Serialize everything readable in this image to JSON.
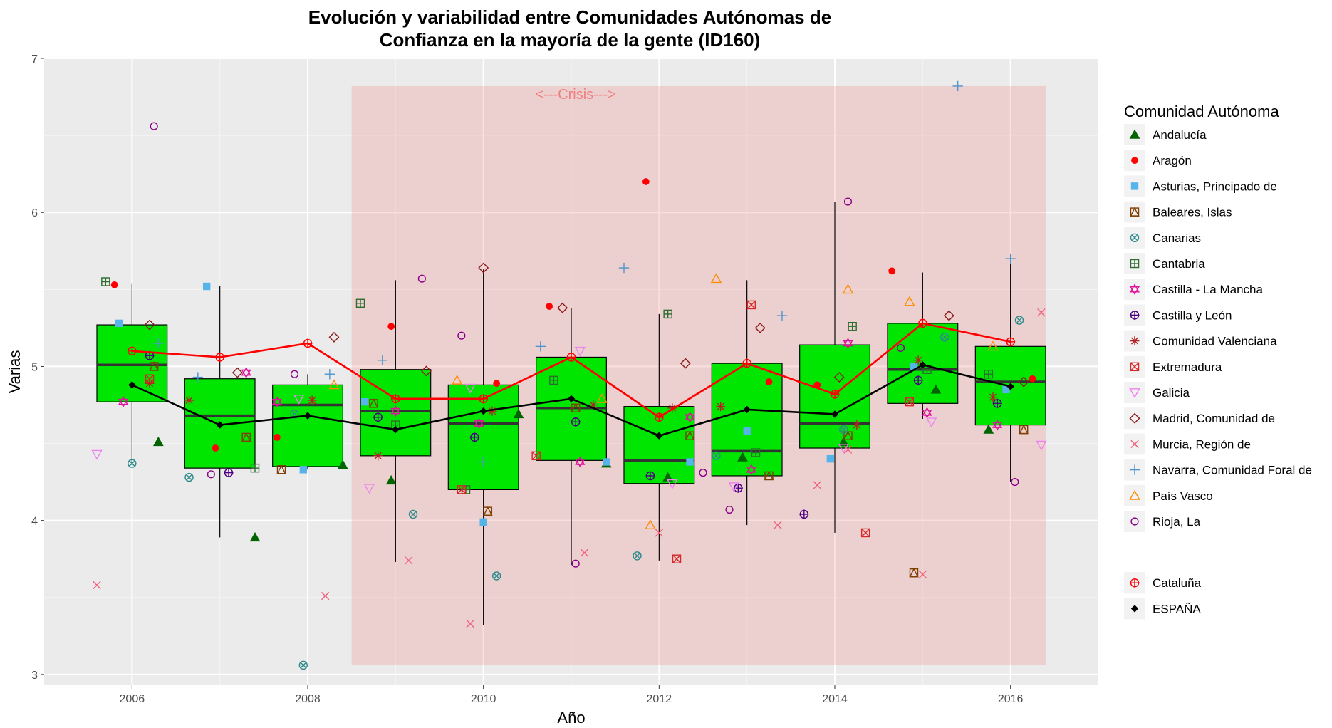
{
  "chart_data": {
    "type": "box",
    "title_lines": [
      "Evolución y variabilidad entre Comunidades Autónomas de",
      "Confianza en la mayoría de la gente (ID160)"
    ],
    "xlabel": "Año",
    "ylabel": "Varias",
    "xlim": [
      2005.0,
      2017.0
    ],
    "ylim": [
      2.93,
      7.0
    ],
    "x_ticks": [
      2006,
      2008,
      2010,
      2012,
      2014,
      2016
    ],
    "y_ticks": [
      3,
      4,
      5,
      6,
      7
    ],
    "grid": true,
    "crisis_band": {
      "x_range": [
        2008.5,
        2016.4
      ],
      "y_range": [
        3.06,
        6.82
      ],
      "label": "<---Crisis--->",
      "color": "#f08080"
    },
    "box_fill": "#00e600",
    "boxes": [
      {
        "year": 2006,
        "lower": 4.36,
        "q1": 4.77,
        "median": 5.01,
        "q3": 5.27,
        "upper": 5.54
      },
      {
        "year": 2007,
        "lower": 3.89,
        "q1": 4.34,
        "median": 4.68,
        "q3": 4.92,
        "upper": 5.52
      },
      {
        "year": 2008,
        "lower": 4.33,
        "q1": 4.35,
        "median": 4.75,
        "q3": 4.88,
        "upper": 4.95
      },
      {
        "year": 2009,
        "lower": 3.73,
        "q1": 4.42,
        "median": 4.71,
        "q3": 4.98,
        "upper": 5.56
      },
      {
        "year": 2010,
        "lower": 3.32,
        "q1": 4.2,
        "median": 4.63,
        "q3": 4.88,
        "upper": 5.63
      },
      {
        "year": 2011,
        "lower": 3.71,
        "q1": 4.39,
        "median": 4.73,
        "q3": 5.06,
        "upper": 5.38
      },
      {
        "year": 2012,
        "lower": 3.74,
        "q1": 4.24,
        "median": 4.39,
        "q3": 4.74,
        "upper": 5.34
      },
      {
        "year": 2013,
        "lower": 3.97,
        "q1": 4.29,
        "median": 4.45,
        "q3": 5.02,
        "upper": 5.56
      },
      {
        "year": 2014,
        "lower": 3.92,
        "q1": 4.47,
        "median": 4.63,
        "q3": 5.14,
        "upper": 6.07
      },
      {
        "year": 2015,
        "lower": 4.66,
        "q1": 4.76,
        "median": 4.98,
        "q3": 5.28,
        "upper": 5.61
      },
      {
        "year": 2016,
        "lower": 4.25,
        "q1": 4.62,
        "median": 4.9,
        "q3": 5.13,
        "upper": 5.69
      }
    ],
    "series": [
      {
        "name": "Cataluña",
        "color": "#ff0000",
        "marker": "circle-plus",
        "x": [
          2006,
          2007,
          2008,
          2009,
          2010,
          2011,
          2012,
          2013,
          2014,
          2015,
          2016
        ],
        "y": [
          5.1,
          5.06,
          5.15,
          4.79,
          4.79,
          5.06,
          4.67,
          5.02,
          4.82,
          5.28,
          5.16
        ]
      },
      {
        "name": "ESPAÑA",
        "color": "#000000",
        "marker": "diamond-filled",
        "x": [
          2006,
          2007,
          2008,
          2009,
          2010,
          2011,
          2012,
          2013,
          2014,
          2015,
          2016
        ],
        "y": [
          4.88,
          4.62,
          4.68,
          4.59,
          4.71,
          4.79,
          4.55,
          4.72,
          4.69,
          5.01,
          4.87
        ]
      }
    ],
    "regions": [
      {
        "name": "Andalucía",
        "color": "#006400",
        "marker": "triangle-filled",
        "points": [
          [
            2006.3,
            4.51
          ],
          [
            2007.4,
            3.89
          ],
          [
            2008.4,
            4.36
          ],
          [
            2008.95,
            4.26
          ],
          [
            2010.4,
            4.69
          ],
          [
            2011.4,
            4.37
          ],
          [
            2012.1,
            4.28
          ],
          [
            2012.95,
            4.41
          ],
          [
            2014.1,
            4.51
          ],
          [
            2015.15,
            4.85
          ],
          [
            2015.75,
            4.59
          ]
        ]
      },
      {
        "name": "Aragón",
        "color": "#ff0000",
        "marker": "circle-filled",
        "points": [
          [
            2005.8,
            5.53
          ],
          [
            2006.95,
            4.47
          ],
          [
            2007.65,
            4.54
          ],
          [
            2008.95,
            5.26
          ],
          [
            2010.15,
            4.89
          ],
          [
            2010.75,
            5.39
          ],
          [
            2011.85,
            6.2
          ],
          [
            2013.25,
            4.9
          ],
          [
            2013.8,
            4.88
          ],
          [
            2014.65,
            5.62
          ],
          [
            2016.25,
            4.92
          ]
        ]
      },
      {
        "name": "Asturias, Principado de",
        "color": "#56b4e9",
        "marker": "square-filled",
        "points": [
          [
            2005.85,
            5.28
          ],
          [
            2006.85,
            5.52
          ],
          [
            2007.95,
            4.33
          ],
          [
            2008.65,
            4.77
          ],
          [
            2010.0,
            3.99
          ],
          [
            2011.4,
            4.38
          ],
          [
            2012.35,
            4.38
          ],
          [
            2013.0,
            4.58
          ],
          [
            2013.95,
            4.4
          ],
          [
            2014.9,
            5.0
          ],
          [
            2015.95,
            4.85
          ]
        ]
      },
      {
        "name": "Baleares, Islas",
        "color": "#7f3f00",
        "marker": "square-triangle",
        "points": [
          [
            2006.25,
            5.0
          ],
          [
            2007.3,
            4.54
          ],
          [
            2007.7,
            4.33
          ],
          [
            2008.75,
            4.76
          ],
          [
            2010.05,
            4.06
          ],
          [
            2011.05,
            4.73
          ],
          [
            2012.35,
            4.55
          ],
          [
            2013.25,
            4.29
          ],
          [
            2014.15,
            4.55
          ],
          [
            2014.9,
            3.66
          ],
          [
            2016.15,
            4.59
          ]
        ]
      },
      {
        "name": "Canarias",
        "color": "#2e8b8b",
        "marker": "circle-x",
        "points": [
          [
            2006.0,
            4.37
          ],
          [
            2006.65,
            4.28
          ],
          [
            2007.85,
            4.69
          ],
          [
            2007.95,
            3.06
          ],
          [
            2009.2,
            4.04
          ],
          [
            2010.15,
            3.64
          ],
          [
            2011.75,
            3.77
          ],
          [
            2012.65,
            4.42
          ],
          [
            2014.1,
            4.59
          ],
          [
            2015.25,
            5.19
          ],
          [
            2016.1,
            5.3
          ]
        ]
      },
      {
        "name": "Cantabria",
        "color": "#2e6b2e",
        "marker": "square-plus",
        "points": [
          [
            2005.7,
            5.55
          ],
          [
            2007.4,
            4.34
          ],
          [
            2008.6,
            5.41
          ],
          [
            2009.0,
            4.62
          ],
          [
            2009.8,
            4.2
          ],
          [
            2010.8,
            4.91
          ],
          [
            2012.1,
            5.34
          ],
          [
            2013.1,
            4.44
          ],
          [
            2014.2,
            5.26
          ],
          [
            2015.05,
            4.98
          ],
          [
            2015.75,
            4.95
          ]
        ]
      },
      {
        "name": "Castilla - La Mancha",
        "color": "#e0119d",
        "marker": "star-of-david",
        "points": [
          [
            2005.9,
            4.77
          ],
          [
            2007.3,
            4.96
          ],
          [
            2007.65,
            4.77
          ],
          [
            2009.0,
            4.71
          ],
          [
            2009.95,
            4.63
          ],
          [
            2011.1,
            4.38
          ],
          [
            2012.35,
            4.67
          ],
          [
            2013.05,
            4.33
          ],
          [
            2014.15,
            5.15
          ],
          [
            2015.05,
            4.7
          ],
          [
            2015.85,
            4.62
          ]
        ]
      },
      {
        "name": "Castilla y León",
        "color": "#4b0082",
        "marker": "circle-plus",
        "points": [
          [
            2006.2,
            5.07
          ],
          [
            2007.1,
            4.31
          ],
          [
            2008.8,
            4.67
          ],
          [
            2009.9,
            4.54
          ],
          [
            2011.05,
            4.64
          ],
          [
            2011.9,
            4.29
          ],
          [
            2012.9,
            4.21
          ],
          [
            2013.65,
            4.04
          ],
          [
            2014.95,
            4.91
          ],
          [
            2015.85,
            4.76
          ]
        ]
      },
      {
        "name": "Comunidad Valenciana",
        "color": "#b22222",
        "marker": "asterisk",
        "points": [
          [
            2006.2,
            4.89
          ],
          [
            2006.65,
            4.78
          ],
          [
            2008.05,
            4.78
          ],
          [
            2008.8,
            4.42
          ],
          [
            2010.1,
            4.71
          ],
          [
            2011.25,
            4.75
          ],
          [
            2012.15,
            4.73
          ],
          [
            2012.7,
            4.74
          ],
          [
            2014.25,
            4.62
          ],
          [
            2014.95,
            5.04
          ],
          [
            2015.8,
            4.8
          ]
        ]
      },
      {
        "name": "Extremadura",
        "color": "#d62728",
        "marker": "square-x",
        "points": [
          [
            2006.2,
            4.92
          ],
          [
            2009.75,
            4.2
          ],
          [
            2010.6,
            4.42
          ],
          [
            2012.2,
            3.75
          ],
          [
            2013.05,
            5.4
          ],
          [
            2014.35,
            3.92
          ],
          [
            2014.85,
            4.77
          ]
        ]
      },
      {
        "name": "Galicia",
        "color": "#ee82ee",
        "marker": "triangle-down",
        "points": [
          [
            2005.6,
            4.43
          ],
          [
            2007.9,
            4.79
          ],
          [
            2008.7,
            4.21
          ],
          [
            2009.85,
            4.86
          ],
          [
            2011.1,
            5.1
          ],
          [
            2012.15,
            4.24
          ],
          [
            2012.85,
            4.22
          ],
          [
            2014.1,
            4.47
          ],
          [
            2015.1,
            4.64
          ],
          [
            2016.35,
            4.49
          ]
        ]
      },
      {
        "name": "Madrid, Comunidad de",
        "color": "#8b1a1a",
        "marker": "diamond",
        "points": [
          [
            2006.2,
            5.27
          ],
          [
            2007.2,
            4.96
          ],
          [
            2008.3,
            5.19
          ],
          [
            2009.35,
            4.97
          ],
          [
            2010.0,
            5.64
          ],
          [
            2010.9,
            5.38
          ],
          [
            2012.3,
            5.02
          ],
          [
            2013.15,
            5.25
          ],
          [
            2014.05,
            4.93
          ],
          [
            2015.3,
            5.33
          ],
          [
            2016.15,
            4.9
          ]
        ]
      },
      {
        "name": "Murcia, Región de",
        "color": "#f0607a",
        "marker": "x",
        "points": [
          [
            2005.6,
            3.58
          ],
          [
            2008.2,
            3.51
          ],
          [
            2009.15,
            3.74
          ],
          [
            2009.85,
            3.33
          ],
          [
            2011.15,
            3.79
          ],
          [
            2012.0,
            3.92
          ],
          [
            2013.35,
            3.97
          ],
          [
            2013.8,
            4.23
          ],
          [
            2014.15,
            4.46
          ],
          [
            2015.0,
            3.65
          ],
          [
            2016.35,
            5.35
          ]
        ]
      },
      {
        "name": "Navarra, Comunidad Foral de",
        "color": "#4f94cd",
        "marker": "plus",
        "points": [
          [
            2006.3,
            5.15
          ],
          [
            2006.75,
            4.93
          ],
          [
            2008.25,
            4.95
          ],
          [
            2008.85,
            5.04
          ],
          [
            2010.0,
            4.38
          ],
          [
            2010.65,
            5.13
          ],
          [
            2011.6,
            5.64
          ],
          [
            2013.4,
            5.33
          ],
          [
            2015.4,
            6.82
          ],
          [
            2016.0,
            5.7
          ]
        ]
      },
      {
        "name": "País Vasco",
        "color": "#ff8c00",
        "marker": "triangle",
        "points": [
          [
            2008.3,
            4.88
          ],
          [
            2009.7,
            4.91
          ],
          [
            2011.35,
            4.79
          ],
          [
            2011.9,
            3.97
          ],
          [
            2012.65,
            5.57
          ],
          [
            2014.15,
            5.5
          ],
          [
            2014.85,
            5.42
          ],
          [
            2015.8,
            5.13
          ]
        ]
      },
      {
        "name": "Rioja, La",
        "color": "#8b008b",
        "marker": "circle",
        "points": [
          [
            2006.25,
            6.56
          ],
          [
            2006.9,
            4.3
          ],
          [
            2007.85,
            4.95
          ],
          [
            2009.3,
            5.57
          ],
          [
            2009.75,
            5.2
          ],
          [
            2011.05,
            3.72
          ],
          [
            2012.5,
            4.31
          ],
          [
            2012.8,
            4.07
          ],
          [
            2014.15,
            6.07
          ],
          [
            2014.75,
            5.12
          ],
          [
            2016.05,
            4.25
          ]
        ]
      }
    ],
    "legend": {
      "title": "Comunidad Autónoma",
      "placement": "right",
      "groups": [
        [
          "Andalucía",
          "Aragón",
          "Asturias, Principado de",
          "Baleares, Islas",
          "Canarias",
          "Cantabria",
          "Castilla - La Mancha",
          "Castilla y León",
          "Comunidad Valenciana",
          "Extremadura",
          "Galicia",
          "Madrid, Comunidad de",
          "Murcia, Región de",
          "Navarra, Comunidad Foral de",
          "País Vasco",
          "Rioja, La"
        ],
        [
          "Cataluña",
          "ESPAÑA"
        ]
      ]
    }
  }
}
